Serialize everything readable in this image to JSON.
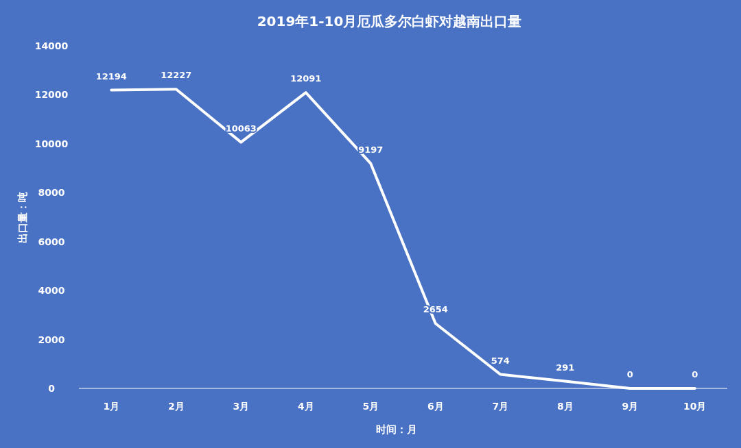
{
  "chart_data": {
    "type": "line",
    "title": "2019年1-10月厄瓜多尔白虾对越南出口量",
    "xlabel": "时间：月",
    "ylabel": "出口量：吨",
    "categories": [
      "1月",
      "2月",
      "3月",
      "4月",
      "5月",
      "6月",
      "7月",
      "8月",
      "9月",
      "10月"
    ],
    "series": [
      {
        "color": "#ffffff",
        "values": [
          12194,
          12227,
          10063,
          12091,
          9197,
          2654,
          574,
          291,
          0,
          0
        ]
      }
    ],
    "ylim": [
      0,
      14000
    ],
    "yticks": [
      0,
      2000,
      4000,
      6000,
      8000,
      10000,
      12000,
      14000
    ],
    "data_labels": true,
    "grid": false,
    "marker": "none",
    "line_style": "solid"
  }
}
